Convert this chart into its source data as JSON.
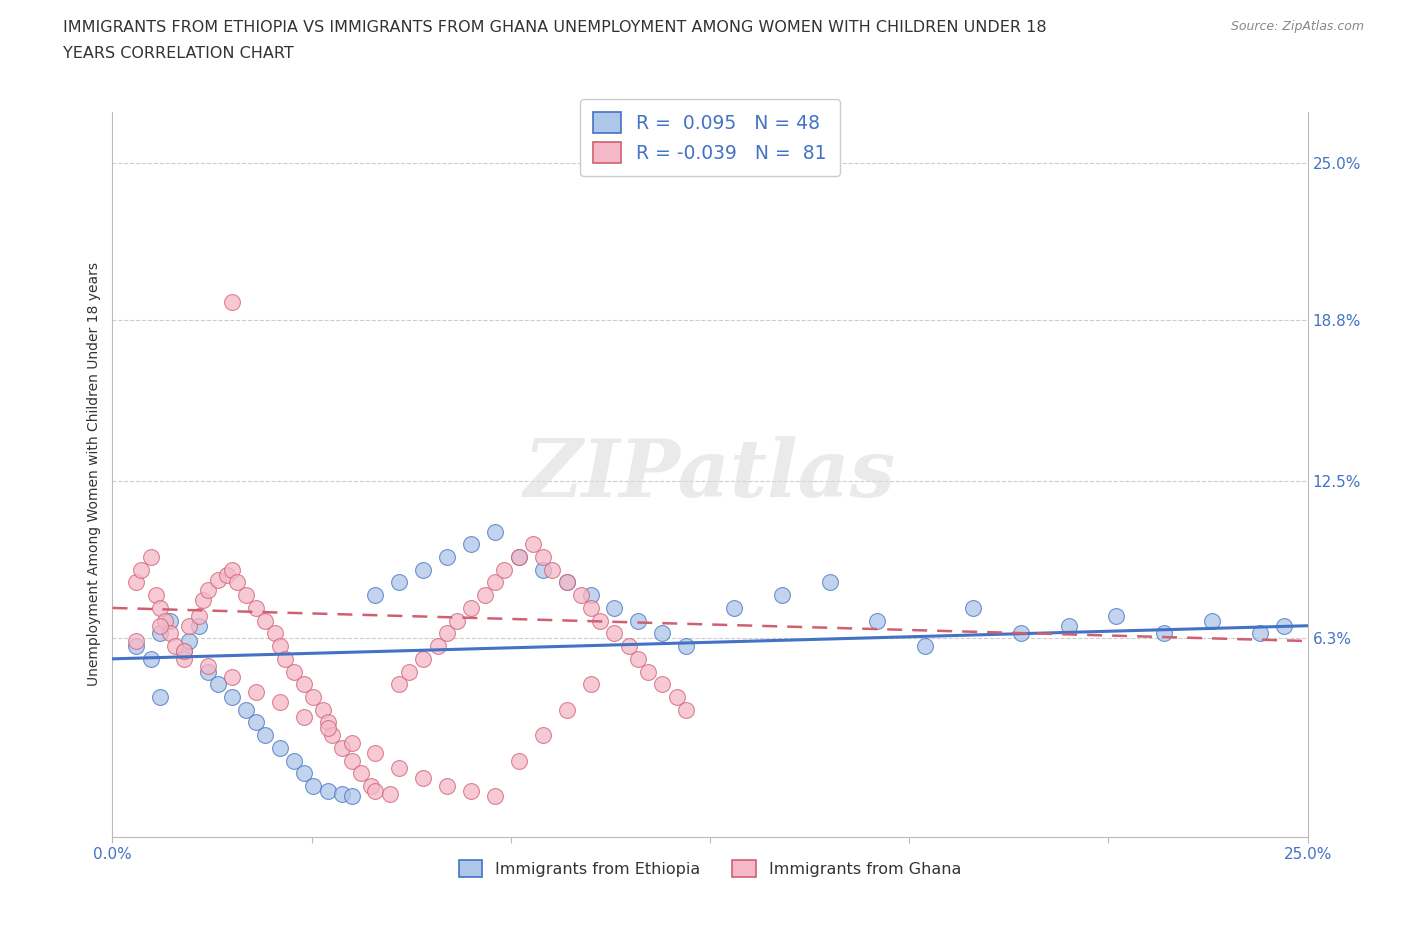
{
  "title_line1": "IMMIGRANTS FROM ETHIOPIA VS IMMIGRANTS FROM GHANA UNEMPLOYMENT AMONG WOMEN WITH CHILDREN UNDER 18",
  "title_line2": "YEARS CORRELATION CHART",
  "source": "Source: ZipAtlas.com",
  "ylabel": "Unemployment Among Women with Children Under 18 years",
  "xlim": [
    0.0,
    0.25
  ],
  "ylim": [
    -0.015,
    0.27
  ],
  "right_ytick_values": [
    0.063,
    0.125,
    0.188,
    0.25
  ],
  "right_ytick_labels": [
    "6.3%",
    "12.5%",
    "18.8%",
    "25.0%"
  ],
  "xtick_values": [
    0.0,
    0.0417,
    0.0833,
    0.125,
    0.1667,
    0.2083,
    0.25
  ],
  "xtick_labels": [
    "0.0%",
    "",
    "",
    "",
    "",
    "",
    "25.0%"
  ],
  "ethiopia_face_color": "#aec6e8",
  "ethiopia_edge_color": "#4472c4",
  "ghana_face_color": "#f5b8c8",
  "ghana_edge_color": "#d06070",
  "ethiopia_line_color": "#4472c4",
  "ghana_line_color": "#d06070",
  "R_ethiopia": 0.095,
  "N_ethiopia": 48,
  "R_ghana": -0.039,
  "N_ghana": 81,
  "legend_label_ethiopia": "Immigrants from Ethiopia",
  "legend_label_ghana": "Immigrants from Ghana",
  "watermark": "ZIPatlas",
  "background_color": "#ffffff",
  "grid_color": "#cccccc",
  "title_color": "#333333",
  "title_fontsize": 11.5,
  "tick_fontsize": 11,
  "tick_color": "#4472c4",
  "ylabel_fontsize": 10,
  "source_fontsize": 9,
  "eth_line_x": [
    0.0,
    0.25
  ],
  "eth_line_y": [
    0.055,
    0.068
  ],
  "gha_line_x": [
    0.0,
    0.25
  ],
  "gha_line_y": [
    0.075,
    0.062
  ],
  "ethiopia_x": [
    0.005,
    0.008,
    0.01,
    0.012,
    0.015,
    0.016,
    0.018,
    0.02,
    0.022,
    0.025,
    0.028,
    0.03,
    0.032,
    0.035,
    0.038,
    0.04,
    0.042,
    0.045,
    0.048,
    0.05,
    0.055,
    0.06,
    0.065,
    0.07,
    0.075,
    0.08,
    0.085,
    0.09,
    0.095,
    0.1,
    0.105,
    0.11,
    0.115,
    0.12,
    0.13,
    0.14,
    0.15,
    0.16,
    0.17,
    0.18,
    0.19,
    0.2,
    0.21,
    0.22,
    0.23,
    0.24,
    0.245,
    0.01
  ],
  "ethiopia_y": [
    0.06,
    0.055,
    0.065,
    0.07,
    0.058,
    0.062,
    0.068,
    0.05,
    0.045,
    0.04,
    0.035,
    0.03,
    0.025,
    0.02,
    0.015,
    0.01,
    0.005,
    0.003,
    0.002,
    0.001,
    0.08,
    0.085,
    0.09,
    0.095,
    0.1,
    0.105,
    0.095,
    0.09,
    0.085,
    0.08,
    0.075,
    0.07,
    0.065,
    0.06,
    0.075,
    0.08,
    0.085,
    0.07,
    0.06,
    0.075,
    0.065,
    0.068,
    0.072,
    0.065,
    0.07,
    0.065,
    0.068,
    0.04
  ],
  "ghana_x": [
    0.005,
    0.006,
    0.008,
    0.009,
    0.01,
    0.011,
    0.012,
    0.013,
    0.015,
    0.016,
    0.018,
    0.019,
    0.02,
    0.022,
    0.024,
    0.025,
    0.026,
    0.028,
    0.03,
    0.032,
    0.034,
    0.035,
    0.036,
    0.038,
    0.04,
    0.042,
    0.044,
    0.045,
    0.046,
    0.048,
    0.05,
    0.052,
    0.054,
    0.055,
    0.058,
    0.06,
    0.062,
    0.065,
    0.068,
    0.07,
    0.072,
    0.075,
    0.078,
    0.08,
    0.082,
    0.085,
    0.088,
    0.09,
    0.092,
    0.095,
    0.098,
    0.1,
    0.102,
    0.105,
    0.108,
    0.11,
    0.112,
    0.115,
    0.118,
    0.12,
    0.005,
    0.01,
    0.015,
    0.02,
    0.025,
    0.03,
    0.035,
    0.04,
    0.045,
    0.05,
    0.055,
    0.06,
    0.065,
    0.07,
    0.075,
    0.08,
    0.085,
    0.09,
    0.095,
    0.1,
    0.025
  ],
  "ghana_y": [
    0.085,
    0.09,
    0.095,
    0.08,
    0.075,
    0.07,
    0.065,
    0.06,
    0.055,
    0.068,
    0.072,
    0.078,
    0.082,
    0.086,
    0.088,
    0.09,
    0.085,
    0.08,
    0.075,
    0.07,
    0.065,
    0.06,
    0.055,
    0.05,
    0.045,
    0.04,
    0.035,
    0.03,
    0.025,
    0.02,
    0.015,
    0.01,
    0.005,
    0.003,
    0.002,
    0.045,
    0.05,
    0.055,
    0.06,
    0.065,
    0.07,
    0.075,
    0.08,
    0.085,
    0.09,
    0.095,
    0.1,
    0.095,
    0.09,
    0.085,
    0.08,
    0.075,
    0.07,
    0.065,
    0.06,
    0.055,
    0.05,
    0.045,
    0.04,
    0.035,
    0.062,
    0.068,
    0.058,
    0.052,
    0.048,
    0.042,
    0.038,
    0.032,
    0.028,
    0.022,
    0.018,
    0.012,
    0.008,
    0.005,
    0.003,
    0.001,
    0.015,
    0.025,
    0.035,
    0.045,
    0.195
  ]
}
